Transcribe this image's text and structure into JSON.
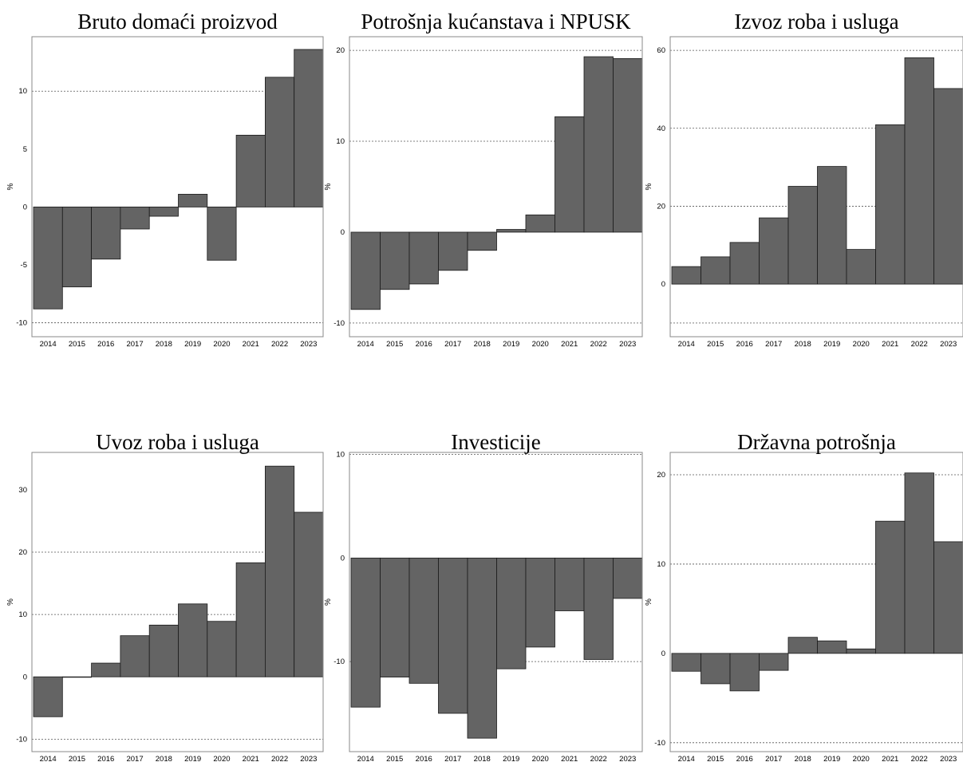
{
  "chart_data": [
    {
      "type": "bar",
      "title": "Bruto domaći proizvod",
      "ylabel": "%",
      "categories": [
        "2014",
        "2015",
        "2016",
        "2017",
        "2018",
        "2019",
        "2020",
        "2021",
        "2022",
        "2023"
      ],
      "values": [
        -8.8,
        -6.9,
        -4.5,
        -1.9,
        -0.8,
        1.1,
        -4.6,
        6.2,
        11.2,
        13.6
      ],
      "ylim": [
        -11.2,
        14.7
      ],
      "yticks": [
        -10,
        -5,
        0,
        5,
        10
      ],
      "gridlines": [
        -10,
        10
      ],
      "grid": true
    },
    {
      "type": "bar",
      "title": "Potrošnja kućanstava i NPUSK",
      "ylabel": "%",
      "categories": [
        "2014",
        "2015",
        "2016",
        "2017",
        "2018",
        "2019",
        "2020",
        "2021",
        "2022",
        "2023"
      ],
      "values": [
        -8.5,
        -6.3,
        -5.7,
        -4.2,
        -2.0,
        0.3,
        1.9,
        12.7,
        19.3,
        19.1
      ],
      "ylim": [
        -11.5,
        21.5
      ],
      "yticks": [
        -10,
        0,
        10,
        20
      ],
      "gridlines": [
        -10,
        10,
        20
      ],
      "grid": true
    },
    {
      "type": "bar",
      "title": "Izvoz roba i usluga",
      "ylabel": "%",
      "categories": [
        "2014",
        "2015",
        "2016",
        "2017",
        "2018",
        "2019",
        "2020",
        "2021",
        "2022",
        "2023"
      ],
      "values": [
        4.5,
        7.0,
        10.7,
        17.0,
        25.1,
        30.2,
        8.9,
        40.9,
        58.1,
        50.2
      ],
      "ylim": [
        -13.5,
        63.5
      ],
      "yticks": [
        0,
        20,
        40,
        60
      ],
      "gridlines": [
        -10,
        20,
        40,
        60
      ],
      "grid": true
    },
    {
      "type": "bar",
      "title": "Uvoz roba i usluga",
      "ylabel": "%",
      "categories": [
        "2014",
        "2015",
        "2016",
        "2017",
        "2018",
        "2019",
        "2020",
        "2021",
        "2022",
        "2023"
      ],
      "values": [
        -6.4,
        0.0,
        2.2,
        6.6,
        8.3,
        11.7,
        8.9,
        18.3,
        33.8,
        26.4
      ],
      "ylim": [
        -12.0,
        36.0
      ],
      "yticks": [
        -10,
        0,
        10,
        20,
        30
      ],
      "gridlines": [
        -10,
        10,
        20
      ],
      "grid": true
    },
    {
      "type": "bar",
      "title": "Investicije",
      "ylabel": "%",
      "categories": [
        "2014",
        "2015",
        "2016",
        "2017",
        "2018",
        "2019",
        "2020",
        "2021",
        "2022",
        "2023"
      ],
      "values": [
        -14.4,
        -11.5,
        -12.1,
        -15.0,
        -17.4,
        -10.7,
        -8.6,
        -5.1,
        -9.8,
        -3.9
      ],
      "ylim": [
        -18.7,
        10.2
      ],
      "yticks": [
        -10,
        0,
        10
      ],
      "gridlines": [
        -10,
        10
      ],
      "grid": true
    },
    {
      "type": "bar",
      "title": "Državna potrošnja",
      "ylabel": "%",
      "categories": [
        "2014",
        "2015",
        "2016",
        "2017",
        "2018",
        "2019",
        "2020",
        "2021",
        "2022",
        "2023"
      ],
      "values": [
        -2.0,
        -3.4,
        -4.2,
        -1.9,
        1.8,
        1.4,
        0.5,
        14.8,
        20.2,
        12.5
      ],
      "ylim": [
        -11.0,
        22.5
      ],
      "yticks": [
        -10,
        0,
        10,
        20
      ],
      "gridlines": [
        -10,
        10,
        20
      ],
      "grid": true
    }
  ]
}
